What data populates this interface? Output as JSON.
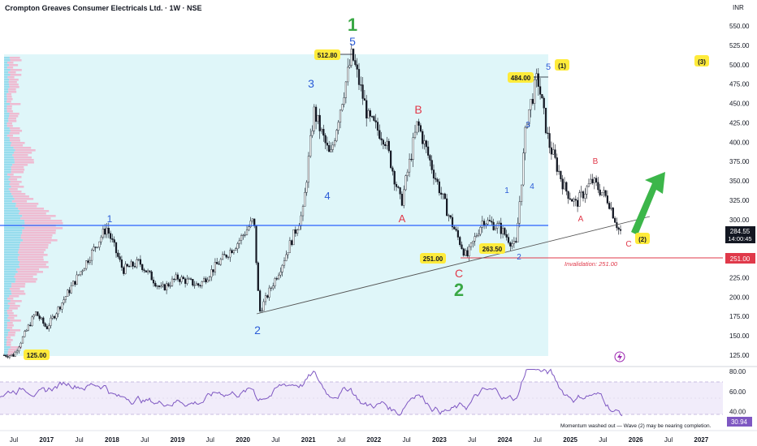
{
  "header": {
    "title": "Crompton Greaves Consumer Electricals Ltd. · 1W · NSE",
    "currency": "INR"
  },
  "colors": {
    "zone": "#dff6f9",
    "up": "#26a69a",
    "candle": "#131722",
    "wave_green": "#3aa845",
    "wave_blue": "#2a5bd7",
    "wave_red": "#e0394a",
    "support": "#2962ff",
    "invalid": "#e0394a",
    "tag_yellow": "#ffeb3b",
    "rsi": "#7e57c2",
    "arrow": "#3cb64a"
  },
  "price_axis": {
    "ticks": [
      "550.00",
      "525.00",
      "500.00",
      "475.00",
      "450.00",
      "425.00",
      "400.00",
      "375.00",
      "350.00",
      "325.00",
      "300.00",
      "275.00",
      "250.00",
      "225.00",
      "200.00",
      "175.00",
      "150.00",
      "125.00"
    ],
    "last_price": "284.55",
    "countdown": "14:00:45",
    "invalid_tag": "251.00"
  },
  "rsi_axis": {
    "ticks": [
      "80.00",
      "60.00",
      "40.00"
    ],
    "value": "30.94",
    "note": "Momentum washed out — Wave (2) may be nearing completion."
  },
  "time_axis": [
    "Jul",
    "2017",
    "Jul",
    "2018",
    "Jul",
    "2019",
    "Jul",
    "2020",
    "Jul",
    "2021",
    "Jul",
    "2022",
    "Jul",
    "2023",
    "Jul",
    "2024",
    "Jul",
    "2025",
    "Jul",
    "2026",
    "Jul",
    "2027"
  ],
  "price_tags": [
    {
      "label": "512.80"
    },
    {
      "label": "484.00"
    },
    {
      "label": "125.00"
    },
    {
      "label": "251.00"
    },
    {
      "label": "263.50"
    }
  ],
  "wave_labels": {
    "major_1": "1",
    "major_2": "2",
    "minor_5_top": "5",
    "minor_3": "3",
    "minor_4": "4",
    "minor_2": "2",
    "minor_1": "1",
    "corr_a": "A",
    "corr_b": "B",
    "corr_c": "C",
    "sub_1": "1",
    "sub_2": "2",
    "sub_3": "3",
    "sub_4": "4",
    "sub_5": "5",
    "w1": "(1)",
    "w2": "(2)",
    "w3": "(3)",
    "new_a": "A",
    "new_b": "B",
    "new_c": "C"
  },
  "invalidation_text": "Invalidation: 251.00",
  "chart_data": {
    "type": "line",
    "title": "Crompton Greaves Consumer Electricals Ltd. · 1W · NSE",
    "ylabel": "INR",
    "ylim": [
      125,
      550
    ],
    "x": [
      "2016-07",
      "2016-11",
      "2017-01",
      "2017-07",
      "2017-12",
      "2018-03",
      "2018-06",
      "2018-10",
      "2019-01",
      "2019-05",
      "2019-08",
      "2019-12",
      "2020-03",
      "2020-04",
      "2020-08",
      "2020-12",
      "2021-02",
      "2021-05",
      "2021-07",
      "2021-09",
      "2021-12",
      "2022-03",
      "2022-06",
      "2022-09",
      "2022-12",
      "2023-03",
      "2023-06",
      "2023-09",
      "2023-12",
      "2024-03",
      "2024-05",
      "2024-07",
      "2024-09",
      "2024-12",
      "2025-02",
      "2025-05",
      "2025-08",
      "2025-10"
    ],
    "series": [
      {
        "values": [
          125,
          180,
          160,
          230,
          290,
          235,
          245,
          210,
          225,
          215,
          240,
          270,
          300,
          180,
          240,
          310,
          440,
          380,
          450,
          512.8,
          430,
          405,
          320,
          425,
          360,
          300,
          251,
          300,
          290,
          263.5,
          430,
          484,
          400,
          340,
          320,
          350,
          325,
          284.55
        ]
      }
    ],
    "levels": [
      {
        "label": "support",
        "value": 294
      },
      {
        "label": "Invalidation: 251.00",
        "value": 251
      }
    ],
    "rsi": {
      "ylim": [
        20,
        90
      ],
      "last": 30.94
    }
  }
}
